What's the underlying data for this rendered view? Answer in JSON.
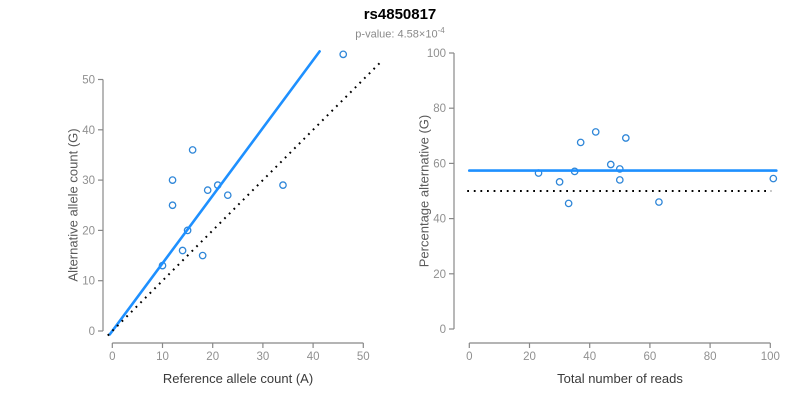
{
  "header": {
    "title": "rs4850817",
    "pvalue_base": "p-value: 4.58×10",
    "pvalue_exponent": "-4"
  },
  "colors": {
    "line_blue": "#1E90FF",
    "point_blue": "#2E86D8",
    "dotted_black": "#000000",
    "axis_gray": "#888888",
    "tick_label_gray": "#909090"
  },
  "chart_data": [
    {
      "type": "scatter",
      "panel": "left",
      "xlabel": "Reference allele count (A)",
      "ylabel": "Alternative allele count (G)",
      "xlim": [
        0,
        50
      ],
      "ylim": [
        0,
        55
      ],
      "xticks": [
        0,
        10,
        20,
        30,
        40,
        50
      ],
      "yticks": [
        0,
        10,
        20,
        30,
        40,
        50
      ],
      "grid": false,
      "marker": "open-circle",
      "points": [
        [
          10,
          13
        ],
        [
          12,
          25
        ],
        [
          12,
          30
        ],
        [
          14,
          16
        ],
        [
          15,
          20
        ],
        [
          16,
          36
        ],
        [
          18,
          15
        ],
        [
          19,
          28
        ],
        [
          21,
          29
        ],
        [
          23,
          27
        ],
        [
          34,
          29
        ],
        [
          46,
          55
        ]
      ],
      "lines": [
        {
          "name": "regression-line",
          "type": "abline",
          "slope": 1.346,
          "intercept": 0,
          "style": "solid",
          "color": "#1E90FF",
          "x_range": [
            -0.5,
            41.3
          ]
        },
        {
          "name": "identity-line",
          "type": "abline",
          "slope": 1,
          "intercept": 0,
          "style": "dotted",
          "color": "#000000",
          "x_range": [
            -0.9,
            53.5
          ]
        }
      ]
    },
    {
      "type": "scatter",
      "panel": "right",
      "xlabel": "Total number of reads",
      "ylabel": "Percentage alternative (G)",
      "xlim": [
        0,
        100
      ],
      "ylim": [
        0,
        100
      ],
      "xticks": [
        0,
        20,
        40,
        60,
        80,
        100
      ],
      "yticks": [
        0,
        20,
        40,
        60,
        80,
        100
      ],
      "grid": false,
      "marker": "open-circle",
      "points": [
        [
          23,
          56.5
        ],
        [
          30,
          53.3
        ],
        [
          33,
          45.5
        ],
        [
          35,
          57.1
        ],
        [
          37,
          67.6
        ],
        [
          42,
          71.4
        ],
        [
          47,
          59.6
        ],
        [
          50,
          58.0
        ],
        [
          50,
          54.0
        ],
        [
          52,
          69.2
        ],
        [
          63,
          46.0
        ],
        [
          101,
          54.5
        ]
      ],
      "lines": [
        {
          "name": "mean-percentage-line",
          "type": "hline",
          "y": 57.4,
          "style": "solid",
          "color": "#1E90FF",
          "x_range": [
            0,
            102
          ]
        },
        {
          "name": "expected-50pct-line",
          "type": "hline",
          "y": 50,
          "style": "dotted",
          "color": "#000000",
          "x_range": [
            -0.7,
            100.3
          ]
        }
      ]
    }
  ]
}
